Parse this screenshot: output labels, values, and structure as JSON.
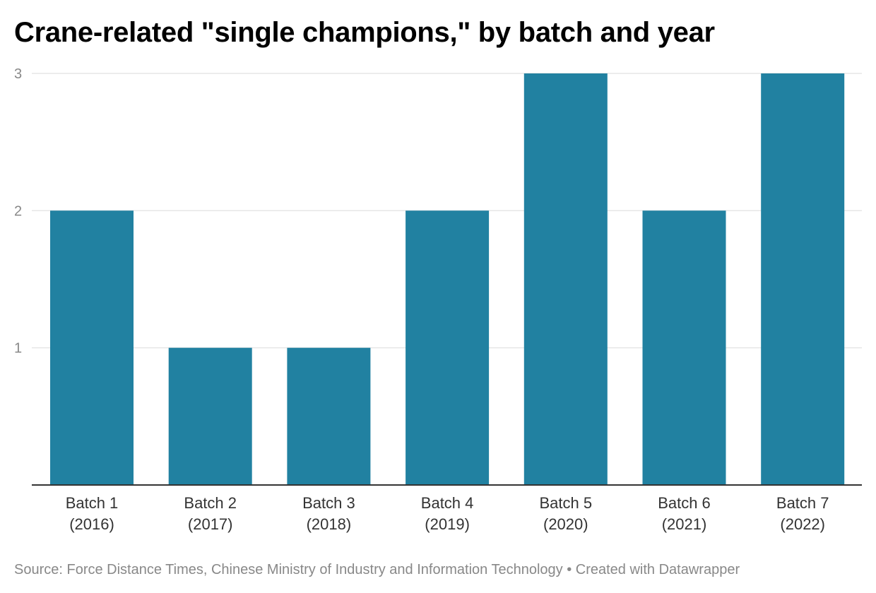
{
  "chart_data": {
    "type": "bar",
    "title": "Crane-related \"single champions,\" by batch and year",
    "categories": [
      [
        "Batch 1",
        "(2016)"
      ],
      [
        "Batch 2",
        "(2017)"
      ],
      [
        "Batch 3",
        "(2018)"
      ],
      [
        "Batch 4",
        "(2019)"
      ],
      [
        "Batch 5",
        "(2020)"
      ],
      [
        "Batch 6",
        "(2021)"
      ],
      [
        "Batch 7",
        "(2022)"
      ]
    ],
    "values": [
      2,
      1,
      1,
      2,
      3,
      2,
      3
    ],
    "xlabel": "",
    "ylabel": "",
    "ylim": [
      0,
      3
    ],
    "yticks": [
      1,
      2,
      3
    ],
    "grid": true,
    "bar_color": "#2181a1",
    "gridline_color": "#e6e6e6",
    "baseline_color": "#333333",
    "tick_label_color": "#888888"
  },
  "footer": {
    "source": "Source: Force Distance Times, Chinese Ministry of Industry and Information Technology • Created with Datawrapper"
  }
}
